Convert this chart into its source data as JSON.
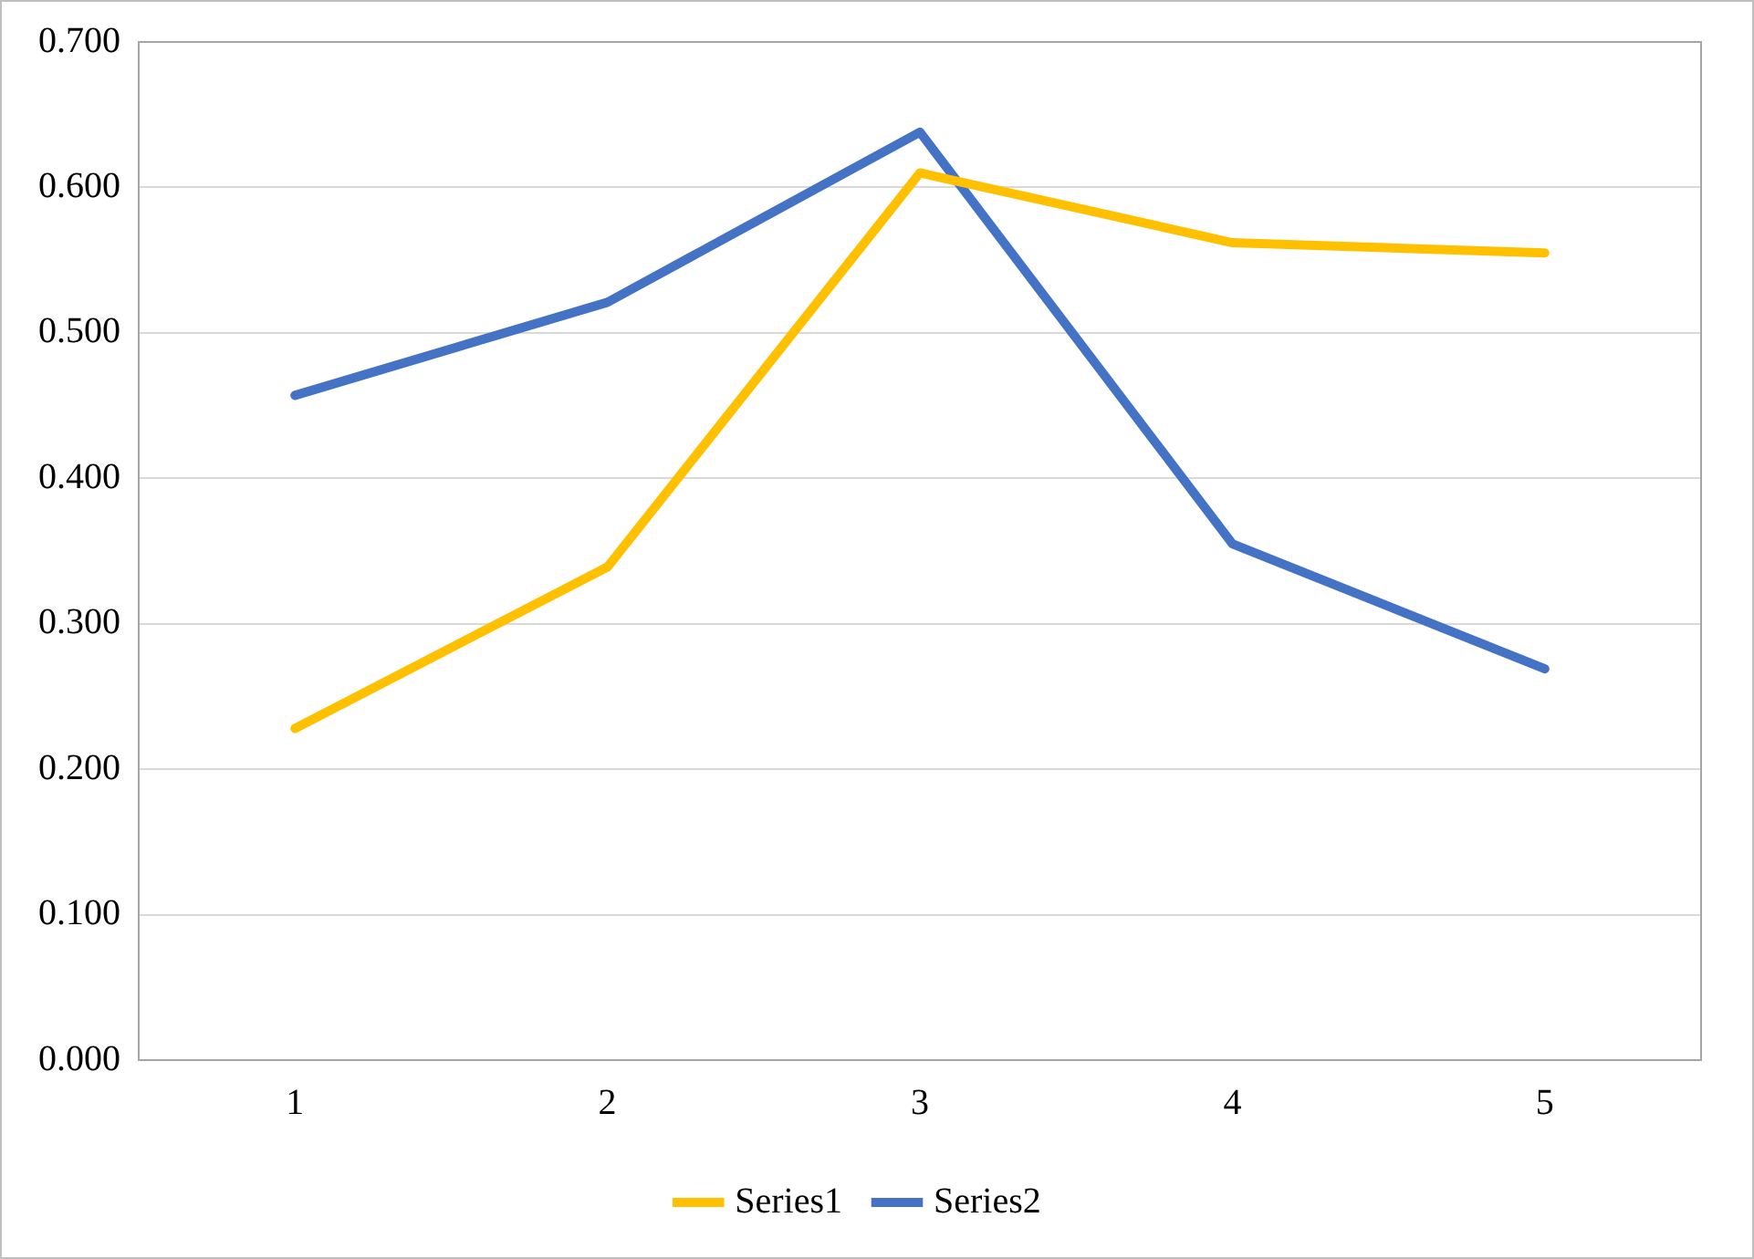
{
  "chart_data": {
    "type": "line",
    "categories": [
      "1",
      "2",
      "3",
      "4",
      "5"
    ],
    "series": [
      {
        "name": "Series1",
        "color": "#ffc000",
        "values": [
          0.228,
          0.339,
          0.61,
          0.562,
          0.555
        ]
      },
      {
        "name": "Series2",
        "color": "#4472c4",
        "values": [
          0.457,
          0.521,
          0.638,
          0.355,
          0.269
        ]
      }
    ],
    "ylim": [
      0,
      0.7
    ],
    "yticks": [
      {
        "value": 0,
        "label": "0.000"
      },
      {
        "value": 0.1,
        "label": "0.100"
      },
      {
        "value": 0.2,
        "label": "0.200"
      },
      {
        "value": 0.3,
        "label": "0.300"
      },
      {
        "value": 0.4,
        "label": "0.400"
      },
      {
        "value": 0.5,
        "label": "0.500"
      },
      {
        "value": 0.6,
        "label": "0.600"
      },
      {
        "value": 0.7,
        "label": "0.700"
      }
    ],
    "grid": "y",
    "legend": "bottom",
    "marker": "none",
    "line_style": "solid"
  }
}
